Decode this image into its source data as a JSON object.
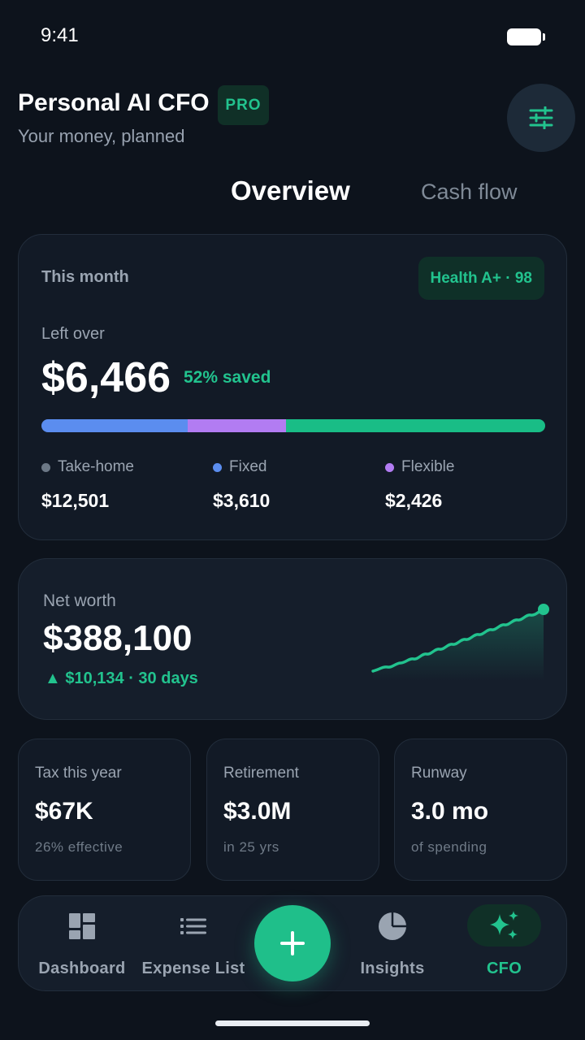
{
  "status": {
    "time": "9:41"
  },
  "header": {
    "title": "Personal AI CFO",
    "badge": "PRO",
    "subtitle": "Your money, planned",
    "settings_icon": "sliders-icon"
  },
  "tabs": [
    {
      "label": "Overview",
      "active": true
    },
    {
      "label": "Cash flow",
      "active": false
    }
  ],
  "month": {
    "label": "This month",
    "health": "Health A+ · 98",
    "leftover_label": "Left over",
    "leftover_value": "$6,466",
    "saved": "52% saved",
    "allocation": [
      {
        "name": "Fixed",
        "fraction": 0.29,
        "color": "#5b8def"
      },
      {
        "name": "Flexible",
        "fraction": 0.195,
        "color": "#b27cf2"
      },
      {
        "name": "Saved",
        "fraction": 0.515,
        "color": "#19bd86"
      }
    ],
    "legend": [
      {
        "label": "Take-home",
        "value": "$12,501",
        "color": "#6c7886"
      },
      {
        "label": "Fixed",
        "value": "$3,610",
        "color": "#5b8def"
      },
      {
        "label": "Flexible",
        "value": "$2,426",
        "color": "#b27cf2"
      }
    ]
  },
  "net_worth": {
    "label": "Net worth",
    "value": "$388,100",
    "change": "▲ $10,134 · 30 days",
    "accent": "#22c38e"
  },
  "stats": [
    {
      "label": "Tax this year",
      "value": "$67K",
      "sub": "26% effective"
    },
    {
      "label": "Retirement",
      "value": "$3.0M",
      "sub": "in 25 yrs"
    },
    {
      "label": "Runway",
      "value": "3.0 mo",
      "sub": "of spending"
    }
  ],
  "nav": {
    "items": [
      {
        "label": "Dashboard",
        "icon": "dashboard-icon"
      },
      {
        "label": "Expense List",
        "icon": "list-icon"
      },
      {
        "label": "Insights",
        "icon": "pie-chart-icon"
      },
      {
        "label": "CFO",
        "icon": "sparkles-icon",
        "active": true
      }
    ],
    "fab_icon": "plus-icon"
  }
}
